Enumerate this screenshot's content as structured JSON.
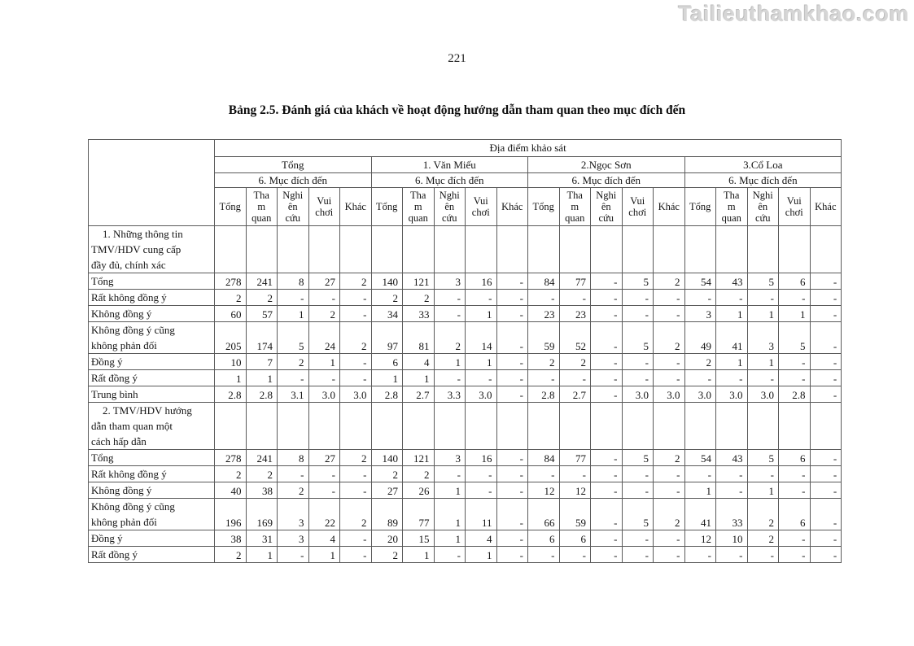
{
  "watermark": "Tailieuthamkhao.com",
  "page_number": "221",
  "title": "Bảng 2.5. Đánh giá của khách về hoạt động hướng dẫn tham quan theo mục đích đến",
  "table": {
    "top_header": "Địa điểm khảo sát",
    "groups": [
      "Tổng",
      "1. Văn Miếu",
      "2.Ngọc Sơn",
      "3.Cổ Loa"
    ],
    "subheader": "6. Mục đích đến",
    "columns": [
      "Tổng",
      "Tha\nm\nquan",
      "Nghi\nên\ncứu",
      "Vui\nchơi",
      "Khác"
    ],
    "rows": [
      {
        "label": "1. Những thông tin\nTMV/HDV cung cấp\nđầy đủ, chính xác",
        "section": true
      },
      {
        "label": "Tổng",
        "values": [
          "278",
          "241",
          "8",
          "27",
          "2",
          "140",
          "121",
          "3",
          "16",
          "-",
          "84",
          "77",
          "-",
          "5",
          "2",
          "54",
          "43",
          "5",
          "6",
          "-"
        ]
      },
      {
        "label": "Rất không đồng ý",
        "values": [
          "2",
          "2",
          "-",
          "-",
          "-",
          "2",
          "2",
          "-",
          "-",
          "-",
          "-",
          "-",
          "-",
          "-",
          "-",
          "-",
          "-",
          "-",
          "-",
          "-"
        ]
      },
      {
        "label": "Không đồng ý",
        "values": [
          "60",
          "57",
          "1",
          "2",
          "-",
          "34",
          "33",
          "-",
          "1",
          "-",
          "23",
          "23",
          "-",
          "-",
          "-",
          "3",
          "1",
          "1",
          "1",
          "-"
        ]
      },
      {
        "label": "Không đồng ý cũng\nkhông phản đối",
        "double": true,
        "values": [
          "205",
          "174",
          "5",
          "24",
          "2",
          "97",
          "81",
          "2",
          "14",
          "-",
          "59",
          "52",
          "-",
          "5",
          "2",
          "49",
          "41",
          "3",
          "5",
          "-"
        ]
      },
      {
        "label": "Đồng ý",
        "values": [
          "10",
          "7",
          "2",
          "1",
          "-",
          "6",
          "4",
          "1",
          "1",
          "-",
          "2",
          "2",
          "-",
          "-",
          "-",
          "2",
          "1",
          "1",
          "-",
          "-"
        ]
      },
      {
        "label": "Rất đồng ý",
        "values": [
          "1",
          "1",
          "-",
          "-",
          "-",
          "1",
          "1",
          "-",
          "-",
          "-",
          "-",
          "-",
          "-",
          "-",
          "-",
          "-",
          "-",
          "-",
          "-",
          "-"
        ]
      },
      {
        "label": "Trung bình",
        "values": [
          "2.8",
          "2.8",
          "3.1",
          "3.0",
          "3.0",
          "2.8",
          "2.7",
          "3.3",
          "3.0",
          "-",
          "2.8",
          "2.7",
          "-",
          "3.0",
          "3.0",
          "3.0",
          "3.0",
          "3.0",
          "2.8",
          "-"
        ]
      },
      {
        "label": "2. TMV/HDV hướng\ndẫn tham quan một\ncách hấp dẫn",
        "section": true
      },
      {
        "label": "Tổng",
        "values": [
          "278",
          "241",
          "8",
          "27",
          "2",
          "140",
          "121",
          "3",
          "16",
          "-",
          "84",
          "77",
          "-",
          "5",
          "2",
          "54",
          "43",
          "5",
          "6",
          "-"
        ]
      },
      {
        "label": "Rất không đồng ý",
        "values": [
          "2",
          "2",
          "-",
          "-",
          "-",
          "2",
          "2",
          "-",
          "-",
          "-",
          "-",
          "-",
          "-",
          "-",
          "-",
          "-",
          "-",
          "-",
          "-",
          "-"
        ]
      },
      {
        "label": "Không đồng ý",
        "values": [
          "40",
          "38",
          "2",
          "-",
          "-",
          "27",
          "26",
          "1",
          "-",
          "-",
          "12",
          "12",
          "-",
          "-",
          "-",
          "1",
          "-",
          "1",
          "-",
          "-"
        ]
      },
      {
        "label": "Không đồng ý cũng\nkhông phản đối",
        "double": true,
        "values": [
          "196",
          "169",
          "3",
          "22",
          "2",
          "89",
          "77",
          "1",
          "11",
          "-",
          "66",
          "59",
          "-",
          "5",
          "2",
          "41",
          "33",
          "2",
          "6",
          "-"
        ]
      },
      {
        "label": "Đồng ý",
        "values": [
          "38",
          "31",
          "3",
          "4",
          "-",
          "20",
          "15",
          "1",
          "4",
          "-",
          "6",
          "6",
          "-",
          "-",
          "-",
          "12",
          "10",
          "2",
          "-",
          "-"
        ]
      },
      {
        "label": "Rất đồng ý",
        "values": [
          "2",
          "1",
          "-",
          "1",
          "-",
          "2",
          "1",
          "-",
          "1",
          "-",
          "-",
          "-",
          "-",
          "-",
          "-",
          "-",
          "-",
          "-",
          "-",
          "-"
        ]
      }
    ]
  }
}
